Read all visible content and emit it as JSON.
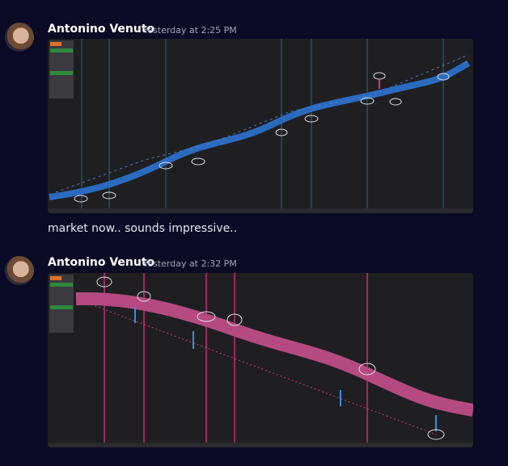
{
  "messages": [
    {
      "author": "Antonino Venuto",
      "timestamp": "Yesterday at 2:25 PM",
      "text": "market now.. sounds impressive.."
    },
    {
      "author": "Antonino Venuto",
      "timestamp": "Yesterday at 2:32 PM"
    }
  ]
}
